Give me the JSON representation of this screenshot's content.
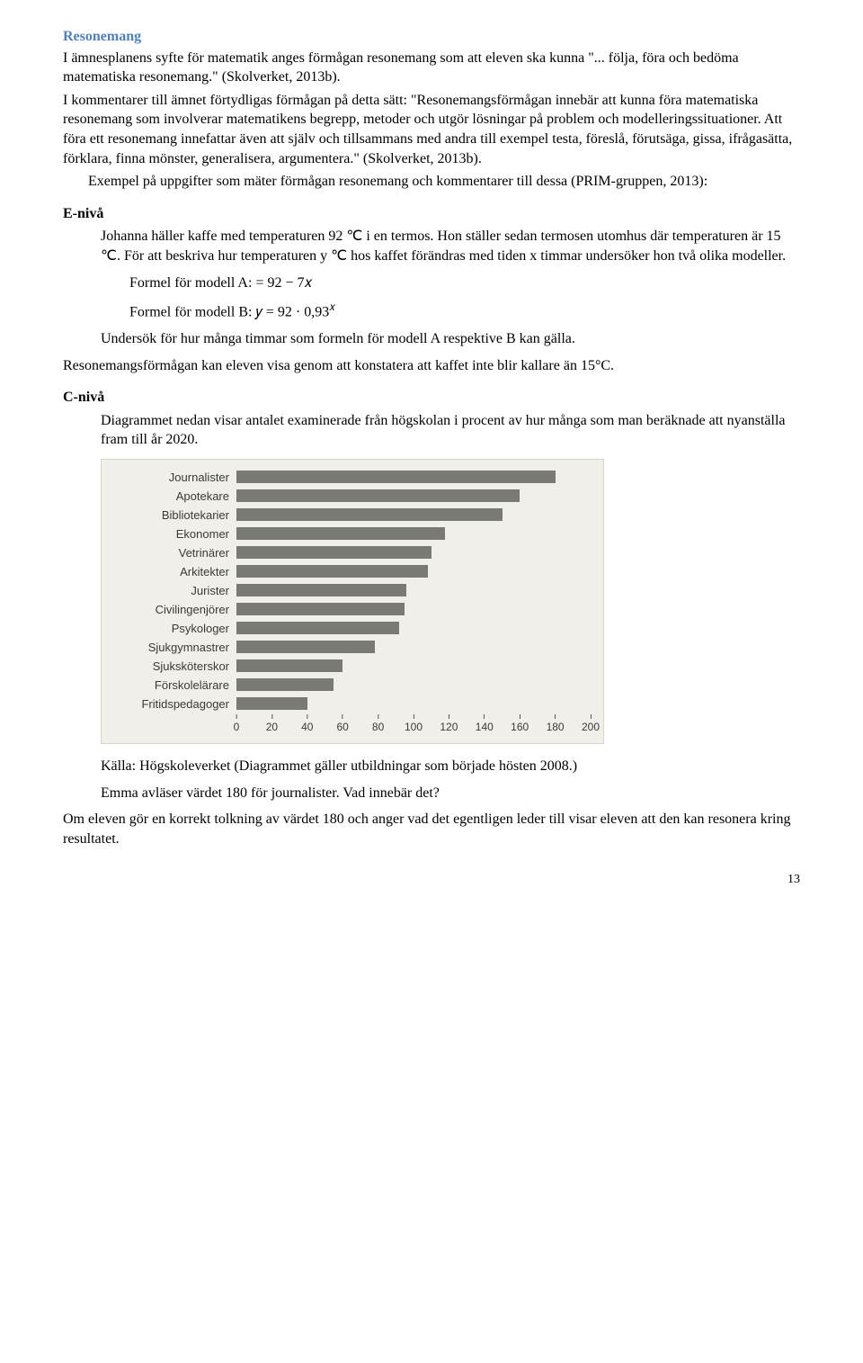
{
  "heading": "Resonemang",
  "para1": "I ämnesplanens syfte för matematik anges förmågan resonemang som att eleven ska kunna \"... följa, föra och bedöma matematiska resonemang.\" (Skolverket, 2013b).",
  "para2": "I kommentarer till ämnet förtydligas förmågan på detta sätt: \"Resonemangsförmågan innebär att kunna föra matematiska resonemang som involverar matematikens begrepp, metoder och utgör lösningar på problem och modelleringssituationer. Att föra ett resonemang innefattar även att själv och tillsammans med andra till exempel testa, föreslå, förutsäga, gissa, ifrågasätta, förklara, finna mönster, generalisera, argumentera.\" (Skolverket, 2013b).",
  "para3": "Exempel på uppgifter som mäter förmågan resonemang och kommentarer till dessa (PRIM-gruppen, 2013):",
  "e_level": "E-nivå",
  "e_p1": "Johanna häller kaffe med temperaturen 92 ℃ i en termos. Hon ställer sedan termosen utomhus där temperaturen är 15 ℃. För att beskriva hur temperaturen y ℃ hos kaffet förändras med tiden x timmar undersöker hon två olika modeller.",
  "e_formulaA_label": "Formel för modell A: ",
  "e_formulaA_expr": "= 92 − 7𝑥",
  "e_formulaB_label": "Formel för modell B: ",
  "e_formulaB_expr_pre": "𝑦 = 92 · 0,93",
  "e_formulaB_expr_sup": "𝑥",
  "e_p2": "Undersök för hur många timmar som formeln för modell A respektive B kan gälla.",
  "e_comment": "Resonemangsförmågan kan eleven visa genom att konstatera att kaffet inte blir kallare än 15°C.",
  "c_level": "C-nivå",
  "c_p1": "Diagrammet nedan visar antalet examinerade från högskolan i procent av hur många som man beräknade att nyanställa fram till år 2020.",
  "chart": {
    "type": "bar",
    "background_color": "#f0efea",
    "bar_color": "#7a7a74",
    "label_color": "#3a3a36",
    "font_family": "Arial",
    "label_fontsize": 13,
    "axis_fontsize": 12,
    "xmin": 0,
    "xmax": 200,
    "xtick_step": 20,
    "categories": [
      "Journalister",
      "Apotekare",
      "Bibliotekarier",
      "Ekonomer",
      "Vetrinärer",
      "Arkitekter",
      "Jurister",
      "Civilingenjörer",
      "Psykologer",
      "Sjukgymnastrer",
      "Sjuksköterskor",
      "Förskolelärare",
      "Fritidspedagoger"
    ],
    "values": [
      180,
      160,
      150,
      118,
      110,
      108,
      96,
      95,
      92,
      78,
      60,
      55,
      40
    ]
  },
  "c_source": "Källa: Högskoleverket (Diagrammet gäller utbildningar som började hösten 2008.)",
  "c_q": "Emma avläser värdet 180 för journalister. Vad innebär det?",
  "c_comment": "Om eleven gör en korrekt tolkning av värdet 180 och anger vad det egentligen leder till visar eleven att den kan resonera kring resultatet.",
  "page_number": "13"
}
